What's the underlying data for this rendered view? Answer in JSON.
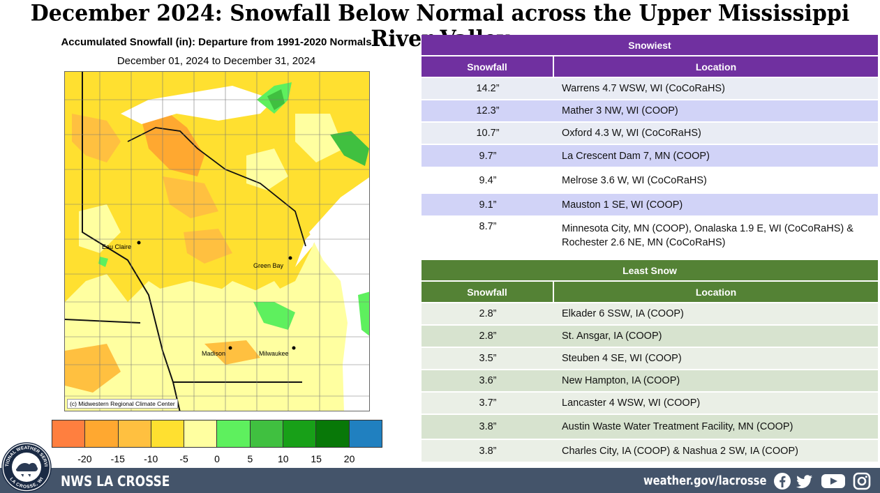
{
  "title": "December 2024:  Snowfall Below Normal across the Upper Mississippi River Valley",
  "map": {
    "title": "Accumulated Snowfall (in): Departure from 1991-2020 Normals",
    "subtitle": "December 01, 2024 to December 31, 2024",
    "credit": "(c) Midwestern Regional Climate Center",
    "cities": [
      "Eau Claire",
      "Green Bay",
      "Madison",
      "Milwaukee"
    ],
    "legend": {
      "colors": [
        "#ff7f3f",
        "#ffa830",
        "#ffc040",
        "#ffe030",
        "#ffffa0",
        "#5ef05e",
        "#40c040",
        "#18a018",
        "#087808",
        "#2080c0"
      ],
      "labels": [
        "-20",
        "-15",
        "-10",
        "-5",
        "0",
        "5",
        "10",
        "15",
        "20"
      ]
    }
  },
  "snowiest": {
    "band": "Snowiest",
    "headers": {
      "snowfall": "Snowfall",
      "location": "Location"
    },
    "rows": [
      {
        "snowfall": "14.2”",
        "location": "Warrens 4.7 WSW, WI (CoCoRaHS)"
      },
      {
        "snowfall": "12.3”",
        "location": "Mather 3 NW, WI (COOP)"
      },
      {
        "snowfall": "10.7”",
        "location": "Oxford 4.3 W, WI (CoCoRaHS)"
      },
      {
        "snowfall": "9.7”",
        "location": "La Crescent Dam 7, MN (COOP)"
      },
      {
        "snowfall": "9.4”",
        "location": "Melrose 3.6 W, WI (CoCoRaHS)"
      },
      {
        "snowfall": "9.1”",
        "location": "Mauston 1 SE, WI (COOP)"
      },
      {
        "snowfall": "8.7”",
        "location": "Minnesota City, MN (COOP), Onalaska 1.9 E, WI (CoCoRaHS) & Rochester 2.6 NE, MN (CoCoRaHS)"
      }
    ]
  },
  "least": {
    "band": "Least Snow",
    "headers": {
      "snowfall": "Snowfall",
      "location": "Location"
    },
    "rows": [
      {
        "snowfall": "2.8”",
        "location": "Elkader 6 SSW, IA (COOP)"
      },
      {
        "snowfall": "2.8”",
        "location": "St. Ansgar, IA (COOP)"
      },
      {
        "snowfall": "3.5”",
        "location": "Steuben 4 SE, WI (COOP)"
      },
      {
        "snowfall": "3.6”",
        "location": "New Hampton, IA (COOP)"
      },
      {
        "snowfall": "3.7”",
        "location": "Lancaster 4 WSW, WI (COOP)"
      },
      {
        "snowfall": "3.8”",
        "location": "Austin Waste Water Treatment Facility, MN (COOP)"
      },
      {
        "snowfall": "3.8”",
        "location": "Charles City, IA (COOP) & Nashua 2 SW, IA (COOP)"
      }
    ]
  },
  "footer": {
    "office": "NWS LA CROSSE",
    "url": "weather.gov/lacrosse",
    "social_icons": [
      "facebook-icon",
      "twitter-icon",
      "youtube-icon",
      "instagram-icon"
    ],
    "background": "#44546a"
  },
  "logo": {
    "text_top": "NATIONAL WEATHER SERVICE",
    "text_bottom": "LA CROSSE, WI"
  },
  "colors": {
    "snowiest_accent": "#7030a0",
    "least_accent": "#548235"
  }
}
